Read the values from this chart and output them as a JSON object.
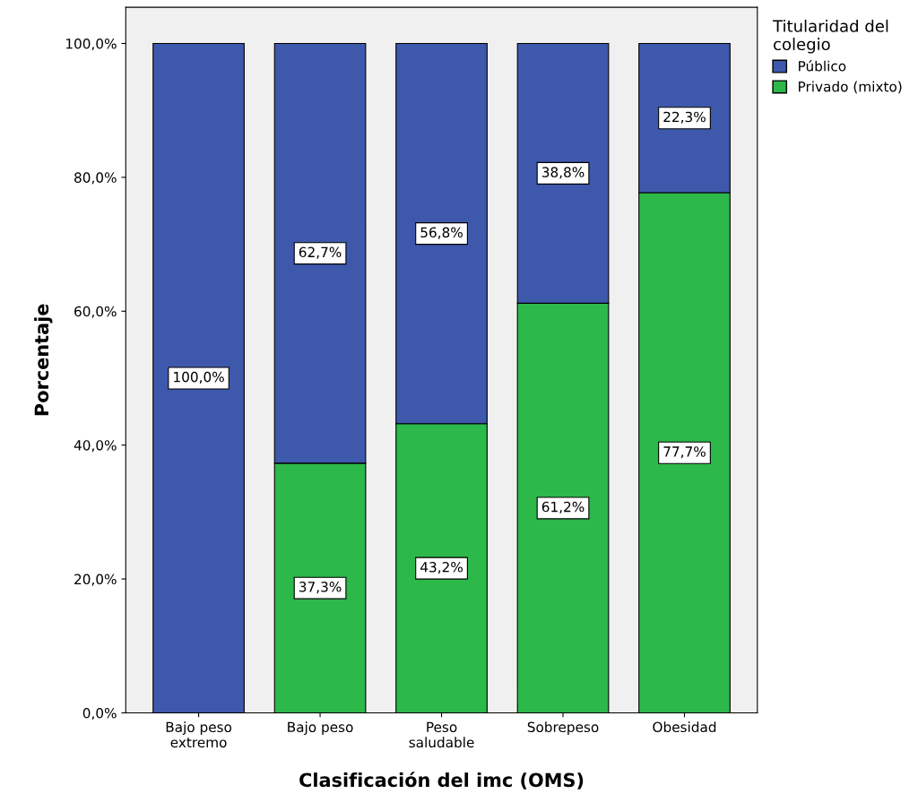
{
  "chart_data": {
    "type": "bar",
    "stacked": true,
    "xlabel": "Clasificación del imc (OMS)",
    "ylabel": "Porcentaje",
    "legend_title": "Titularidad del\ncolegio",
    "legend": "right",
    "categories": [
      "Bajo peso\nextremo",
      "Bajo peso",
      "Peso\nsaludable",
      "Sobrepeso",
      "Obesidad"
    ],
    "series": [
      {
        "name": "Privado (mixto)",
        "color": "#2db84a",
        "values": [
          0,
          37.3,
          43.2,
          61.2,
          77.7
        ],
        "value_labels": [
          null,
          "37,3%",
          "43,2%",
          "61,2%",
          "77,7%"
        ]
      },
      {
        "name": "Público",
        "color": "#3e58ac",
        "values": [
          100,
          62.7,
          56.8,
          38.8,
          22.3
        ],
        "value_labels": [
          "100,0%",
          "62,7%",
          "56,8%",
          "38,8%",
          "22,3%"
        ]
      }
    ],
    "ylim": [
      0,
      105.4
    ],
    "yticks": [
      {
        "value": 0,
        "label": "0,0%"
      },
      {
        "value": 20,
        "label": "20,0%"
      },
      {
        "value": 40,
        "label": "40,0%"
      },
      {
        "value": 60,
        "label": "60,0%"
      },
      {
        "value": 80,
        "label": "80,0%"
      },
      {
        "value": 100,
        "label": "100,0%"
      }
    ],
    "grid": false
  }
}
